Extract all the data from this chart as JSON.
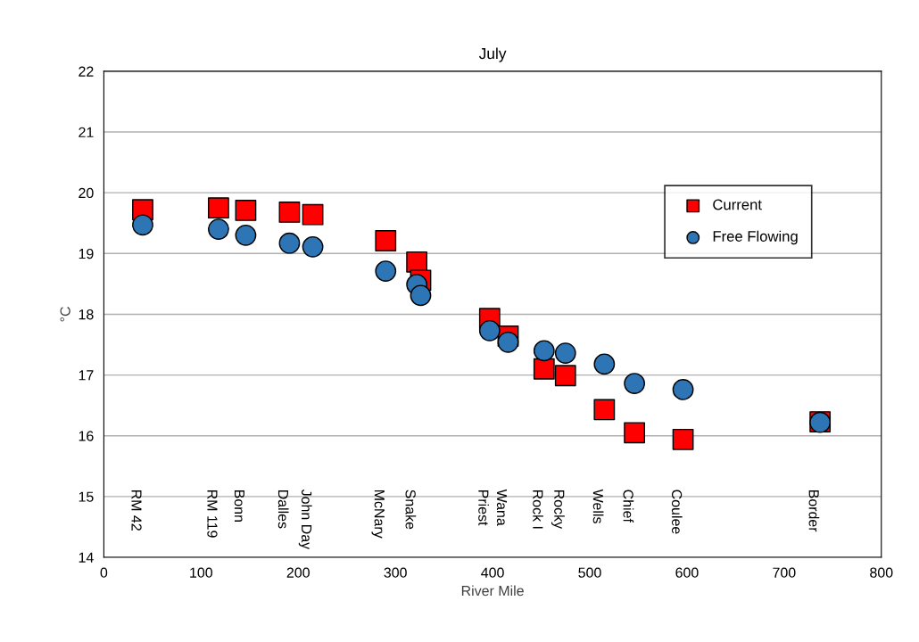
{
  "chart_data": {
    "type": "scatter",
    "title": "July",
    "xlabel": "River Mile",
    "ylabel": "°C",
    "xlim": [
      0,
      800
    ],
    "xticks": [
      0,
      100,
      200,
      300,
      400,
      500,
      600,
      700,
      800
    ],
    "ylim": [
      14,
      22
    ],
    "yticks": [
      14,
      15,
      16,
      17,
      18,
      19,
      20,
      21,
      22
    ],
    "grid": "y",
    "legend": "top right",
    "series": [
      {
        "name": "Current",
        "color": "#ff0000",
        "marker": "square",
        "x": [
          40,
          118,
          146,
          191,
          215,
          290,
          322,
          326,
          397,
          416,
          453,
          475,
          515,
          546,
          596,
          737
        ],
        "values": [
          19.72,
          19.75,
          19.71,
          19.68,
          19.64,
          19.21,
          18.86,
          18.56,
          17.93,
          17.64,
          17.1,
          16.99,
          16.43,
          16.05,
          15.94,
          16.23
        ]
      },
      {
        "name": "Free Flowing",
        "color": "#2e75b6",
        "marker": "circle",
        "x": [
          40,
          118,
          146,
          191,
          215,
          290,
          322,
          326,
          397,
          416,
          453,
          475,
          515,
          546,
          596,
          737
        ],
        "values": [
          19.47,
          19.4,
          19.3,
          19.17,
          19.11,
          18.71,
          18.49,
          18.31,
          17.73,
          17.54,
          17.4,
          17.36,
          17.18,
          16.86,
          16.76,
          16.22
        ]
      }
    ],
    "annotations": [
      "RM 42",
      "RM 119",
      "Bonn",
      "Dalles",
      "John Day",
      "McNary",
      "Snake",
      "Priest",
      "Wana",
      "Rock I",
      "Rocky",
      "Wells",
      "Chief",
      "Coulee",
      "Border"
    ]
  }
}
